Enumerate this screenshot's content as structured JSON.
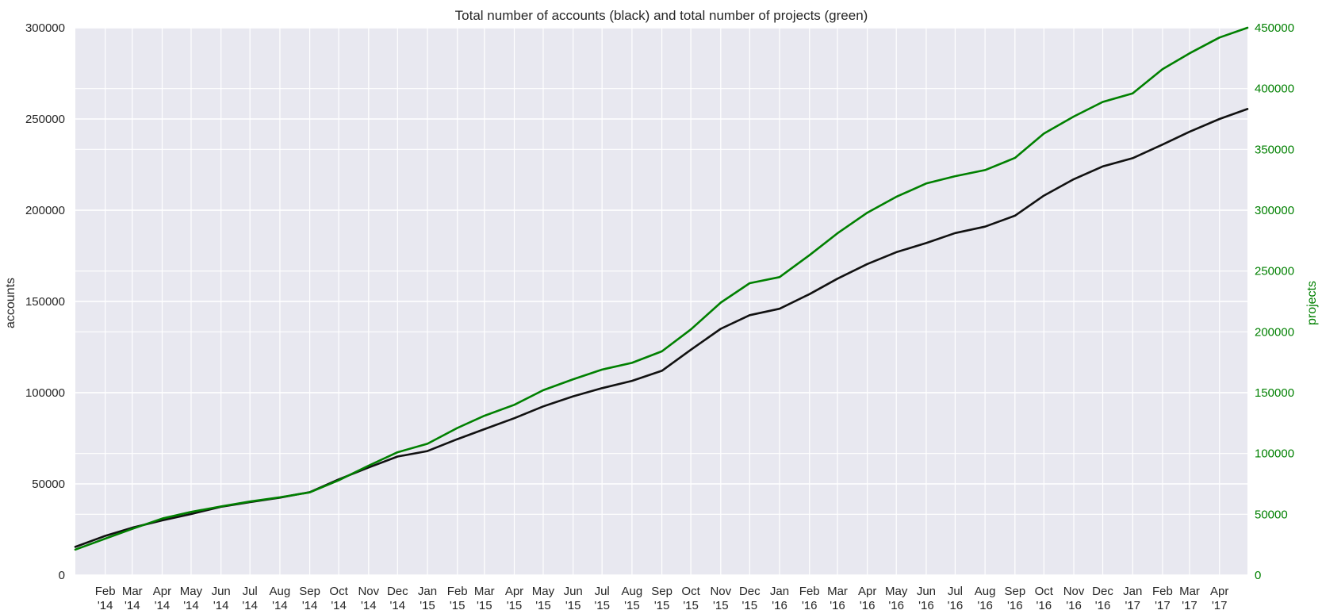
{
  "chart_data": {
    "type": "line",
    "title": "Total number of accounts (black) and total number of projects (green)",
    "xlabel": "",
    "ylabel": "accounts",
    "y2label": "projects",
    "grid": true,
    "legend": "none",
    "x_tick_labels": [
      [
        "Feb",
        "'14"
      ],
      [
        "Mar",
        "'14"
      ],
      [
        "Apr",
        "'14"
      ],
      [
        "May",
        "'14"
      ],
      [
        "Jun",
        "'14"
      ],
      [
        "Jul",
        "'14"
      ],
      [
        "Aug",
        "'14"
      ],
      [
        "Sep",
        "'14"
      ],
      [
        "Oct",
        "'14"
      ],
      [
        "Nov",
        "'14"
      ],
      [
        "Dec",
        "'14"
      ],
      [
        "Jan",
        "'15"
      ],
      [
        "Feb",
        "'15"
      ],
      [
        "Mar",
        "'15"
      ],
      [
        "Apr",
        "'15"
      ],
      [
        "May",
        "'15"
      ],
      [
        "Jun",
        "'15"
      ],
      [
        "Jul",
        "'15"
      ],
      [
        "Aug",
        "'15"
      ],
      [
        "Sep",
        "'15"
      ],
      [
        "Oct",
        "'15"
      ],
      [
        "Nov",
        "'15"
      ],
      [
        "Dec",
        "'15"
      ],
      [
        "Jan",
        "'16"
      ],
      [
        "Feb",
        "'16"
      ],
      [
        "Mar",
        "'16"
      ],
      [
        "Apr",
        "'16"
      ],
      [
        "May",
        "'16"
      ],
      [
        "Jun",
        "'16"
      ],
      [
        "Jul",
        "'16"
      ],
      [
        "Aug",
        "'16"
      ],
      [
        "Sep",
        "'16"
      ],
      [
        "Oct",
        "'16"
      ],
      [
        "Nov",
        "'16"
      ],
      [
        "Dec",
        "'16"
      ],
      [
        "Jan",
        "'17"
      ],
      [
        "Feb",
        "'17"
      ],
      [
        "Mar",
        "'17"
      ],
      [
        "Apr",
        "'17"
      ]
    ],
    "x": [
      "2014-01-01",
      "2014-02-01",
      "2014-03-01",
      "2014-04-01",
      "2014-05-01",
      "2014-06-01",
      "2014-07-01",
      "2014-08-01",
      "2014-09-01",
      "2014-10-01",
      "2014-11-01",
      "2014-12-01",
      "2015-01-01",
      "2015-02-01",
      "2015-03-01",
      "2015-04-01",
      "2015-05-01",
      "2015-06-01",
      "2015-07-01",
      "2015-08-01",
      "2015-09-01",
      "2015-10-01",
      "2015-11-01",
      "2015-12-01",
      "2016-01-01",
      "2016-02-01",
      "2016-03-01",
      "2016-04-01",
      "2016-05-01",
      "2016-06-01",
      "2016-07-01",
      "2016-08-01",
      "2016-09-01",
      "2016-10-01",
      "2016-11-01",
      "2016-12-01",
      "2017-01-01",
      "2017-02-01",
      "2017-03-01",
      "2017-04-01",
      "2017-04-30"
    ],
    "xlim": [
      "2014-01-01",
      "2017-04-30"
    ],
    "y_axis_left": {
      "ylim": [
        0,
        300000
      ],
      "ticks": [
        "0",
        "50000",
        "100000",
        "150000",
        "200000",
        "250000",
        "300000"
      ]
    },
    "y_axis_right": {
      "ylim": [
        0,
        450000
      ],
      "ticks": [
        "0",
        "50000",
        "100000",
        "150000",
        "200000",
        "250000",
        "300000",
        "350000",
        "400000",
        "450000"
      ]
    },
    "series": [
      {
        "axis": "left",
        "color": "#111111",
        "values": [
          15500,
          21500,
          26000,
          30000,
          33500,
          37500,
          40000,
          42500,
          45500,
          52500,
          59000,
          65000,
          68000,
          74500,
          80000,
          86000,
          92500,
          98000,
          102500,
          106500,
          112000,
          123500,
          135000,
          142500,
          146000,
          154000,
          162500,
          170500,
          177000,
          182000,
          187500,
          191000,
          197000,
          208000,
          217000,
          224000,
          228500,
          236000,
          243000,
          250000,
          255500
        ]
      },
      {
        "axis": "right",
        "color": "#008000",
        "values": [
          21000,
          30000,
          38000,
          46500,
          52000,
          56500,
          60500,
          64000,
          68000,
          78000,
          90000,
          101000,
          108000,
          121000,
          131000,
          140000,
          152000,
          161000,
          169000,
          174500,
          184000,
          202000,
          224000,
          240000,
          245000,
          263000,
          281000,
          298000,
          311000,
          322000,
          328000,
          333000,
          343000,
          363000,
          377000,
          389000,
          396000,
          416000,
          429000,
          442000,
          450000
        ]
      }
    ]
  }
}
